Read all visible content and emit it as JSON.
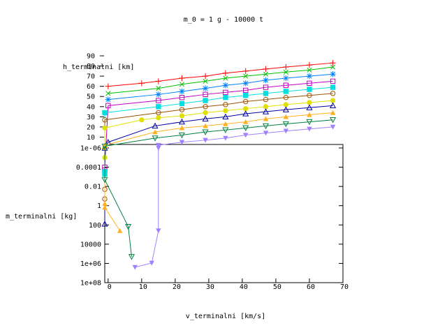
{
  "chart_data": {
    "type": "line",
    "title": "m_0 = 1 g - 10000 t",
    "xlabel": "v_terminalni [km/s]",
    "x_ticks": [
      "0",
      "10",
      "20",
      "30",
      "40",
      "50",
      "60",
      "70"
    ],
    "xlim": [
      -1,
      70
    ],
    "top_panel": {
      "ylabel": "h_terminalni [km]",
      "ylim": [
        0,
        90
      ],
      "y_ticks": [
        "10",
        "20",
        "30",
        "40",
        "50",
        "60",
        "70",
        "80",
        "90"
      ]
    },
    "bottom_panel": {
      "ylabel": "m_terminalni [kg]",
      "scale": "log",
      "inverted": true,
      "y_ticks": [
        "1e-06",
        "0.0001",
        "0.01",
        "1",
        "100",
        "10000",
        "1e+06",
        "1e+08"
      ]
    },
    "series": [
      {
        "color": "#ff0000",
        "marker": "plus",
        "h": [
          [
            0,
            60
          ],
          [
            10,
            63
          ],
          [
            15,
            65
          ],
          [
            22,
            68
          ],
          [
            29,
            70
          ],
          [
            35,
            73
          ],
          [
            41,
            75
          ],
          [
            47,
            77
          ],
          [
            53,
            79
          ],
          [
            60,
            81
          ],
          [
            67,
            83
          ]
        ],
        "m": []
      },
      {
        "color": "#00c000",
        "marker": "cross",
        "h": [
          [
            0,
            53
          ],
          [
            15,
            58
          ],
          [
            22,
            62
          ],
          [
            29,
            65
          ],
          [
            35,
            68
          ],
          [
            41,
            70
          ],
          [
            47,
            72
          ],
          [
            53,
            74
          ],
          [
            60,
            76
          ],
          [
            67,
            79
          ]
        ],
        "m": []
      },
      {
        "color": "#0080ff",
        "marker": "star",
        "h": [
          [
            0,
            47
          ],
          [
            15,
            52
          ],
          [
            22,
            55
          ],
          [
            29,
            58
          ],
          [
            35,
            61
          ],
          [
            41,
            63
          ],
          [
            47,
            66
          ],
          [
            53,
            68
          ],
          [
            60,
            70
          ],
          [
            67,
            72
          ]
        ],
        "m": []
      },
      {
        "color": "#c000c0",
        "marker": "square",
        "h": [
          [
            0,
            41
          ],
          [
            15,
            46
          ],
          [
            22,
            49
          ],
          [
            29,
            52
          ],
          [
            35,
            54
          ],
          [
            41,
            56
          ],
          [
            47,
            59
          ],
          [
            53,
            61
          ],
          [
            60,
            63
          ],
          [
            67,
            65
          ]
        ],
        "m": [
          [
            -1,
            0.0001
          ],
          [
            -1,
            0.0002
          ]
        ]
      },
      {
        "color": "#00e0e0",
        "marker": "filled-square",
        "h": [
          [
            -1,
            34
          ],
          [
            15,
            40
          ],
          [
            22,
            43
          ],
          [
            29,
            46
          ],
          [
            35,
            49
          ],
          [
            41,
            51
          ],
          [
            47,
            53
          ],
          [
            53,
            55
          ],
          [
            60,
            57
          ],
          [
            67,
            59
          ]
        ],
        "m": [
          [
            -1,
            0.0003
          ],
          [
            -1,
            0.0005
          ]
        ]
      },
      {
        "color": "#a05000",
        "marker": "circle",
        "h": [
          [
            -1,
            27
          ],
          [
            15,
            34
          ],
          [
            22,
            37
          ],
          [
            29,
            40
          ],
          [
            35,
            42
          ],
          [
            41,
            45
          ],
          [
            47,
            47
          ],
          [
            53,
            49
          ],
          [
            60,
            51
          ],
          [
            67,
            53
          ]
        ],
        "m": [
          [
            -1,
            0.02
          ],
          [
            -1,
            0.2
          ]
        ]
      },
      {
        "color": "#e0e000",
        "marker": "filled-circle",
        "h": [
          [
            -1,
            19
          ],
          [
            10,
            27
          ],
          [
            15,
            29
          ],
          [
            22,
            31
          ],
          [
            29,
            34
          ],
          [
            35,
            36
          ],
          [
            41,
            38
          ],
          [
            47,
            40
          ],
          [
            53,
            42
          ],
          [
            60,
            44
          ],
          [
            67,
            46
          ]
        ],
        "m": [
          [
            -1,
            1e-06
          ],
          [
            -1,
            1e-05
          ]
        ]
      },
      {
        "color": "#0000a0",
        "marker": "triangle",
        "h": [
          [
            0,
            5
          ],
          [
            14,
            21
          ],
          [
            22,
            25
          ],
          [
            29,
            28
          ],
          [
            35,
            30
          ],
          [
            41,
            33
          ],
          [
            47,
            35
          ],
          [
            53,
            37
          ],
          [
            60,
            39
          ],
          [
            67,
            41
          ]
        ],
        "m": [
          [
            -1,
            1e-06
          ],
          [
            -1,
            80
          ]
        ]
      },
      {
        "color": "#ffb020",
        "marker": "filled-triangle",
        "h": [
          [
            -1,
            2
          ],
          [
            14,
            15
          ],
          [
            22,
            19
          ],
          [
            29,
            21
          ],
          [
            35,
            23
          ],
          [
            41,
            25
          ],
          [
            47,
            28
          ],
          [
            53,
            30
          ],
          [
            60,
            32
          ],
          [
            67,
            34
          ]
        ],
        "m": [
          [
            -1,
            0.6
          ],
          [
            -1,
            1.5
          ],
          [
            3.5,
            400
          ]
        ]
      },
      {
        "color": "#008040",
        "marker": "triangle-down",
        "h": [
          [
            -1,
            1
          ],
          [
            14,
            9
          ],
          [
            22,
            12
          ],
          [
            29,
            15
          ],
          [
            35,
            17
          ],
          [
            41,
            19
          ],
          [
            47,
            21
          ],
          [
            53,
            23
          ],
          [
            60,
            25
          ],
          [
            67,
            27
          ]
        ],
        "m": [
          [
            -1,
            0.002
          ],
          [
            6,
            150
          ],
          [
            7,
            200000
          ]
        ]
      },
      {
        "color": "#a080ff",
        "marker": "filled-triangle-down",
        "h": [
          [
            15,
            2
          ],
          [
            22,
            5
          ],
          [
            29,
            7
          ],
          [
            35,
            9
          ],
          [
            41,
            12
          ],
          [
            47,
            14
          ],
          [
            53,
            16
          ],
          [
            60,
            18
          ],
          [
            67,
            20
          ]
        ],
        "m": [
          [
            15,
            1e-06
          ],
          [
            15,
            400
          ],
          [
            13,
            900000
          ],
          [
            8,
            2500000
          ]
        ]
      }
    ]
  }
}
